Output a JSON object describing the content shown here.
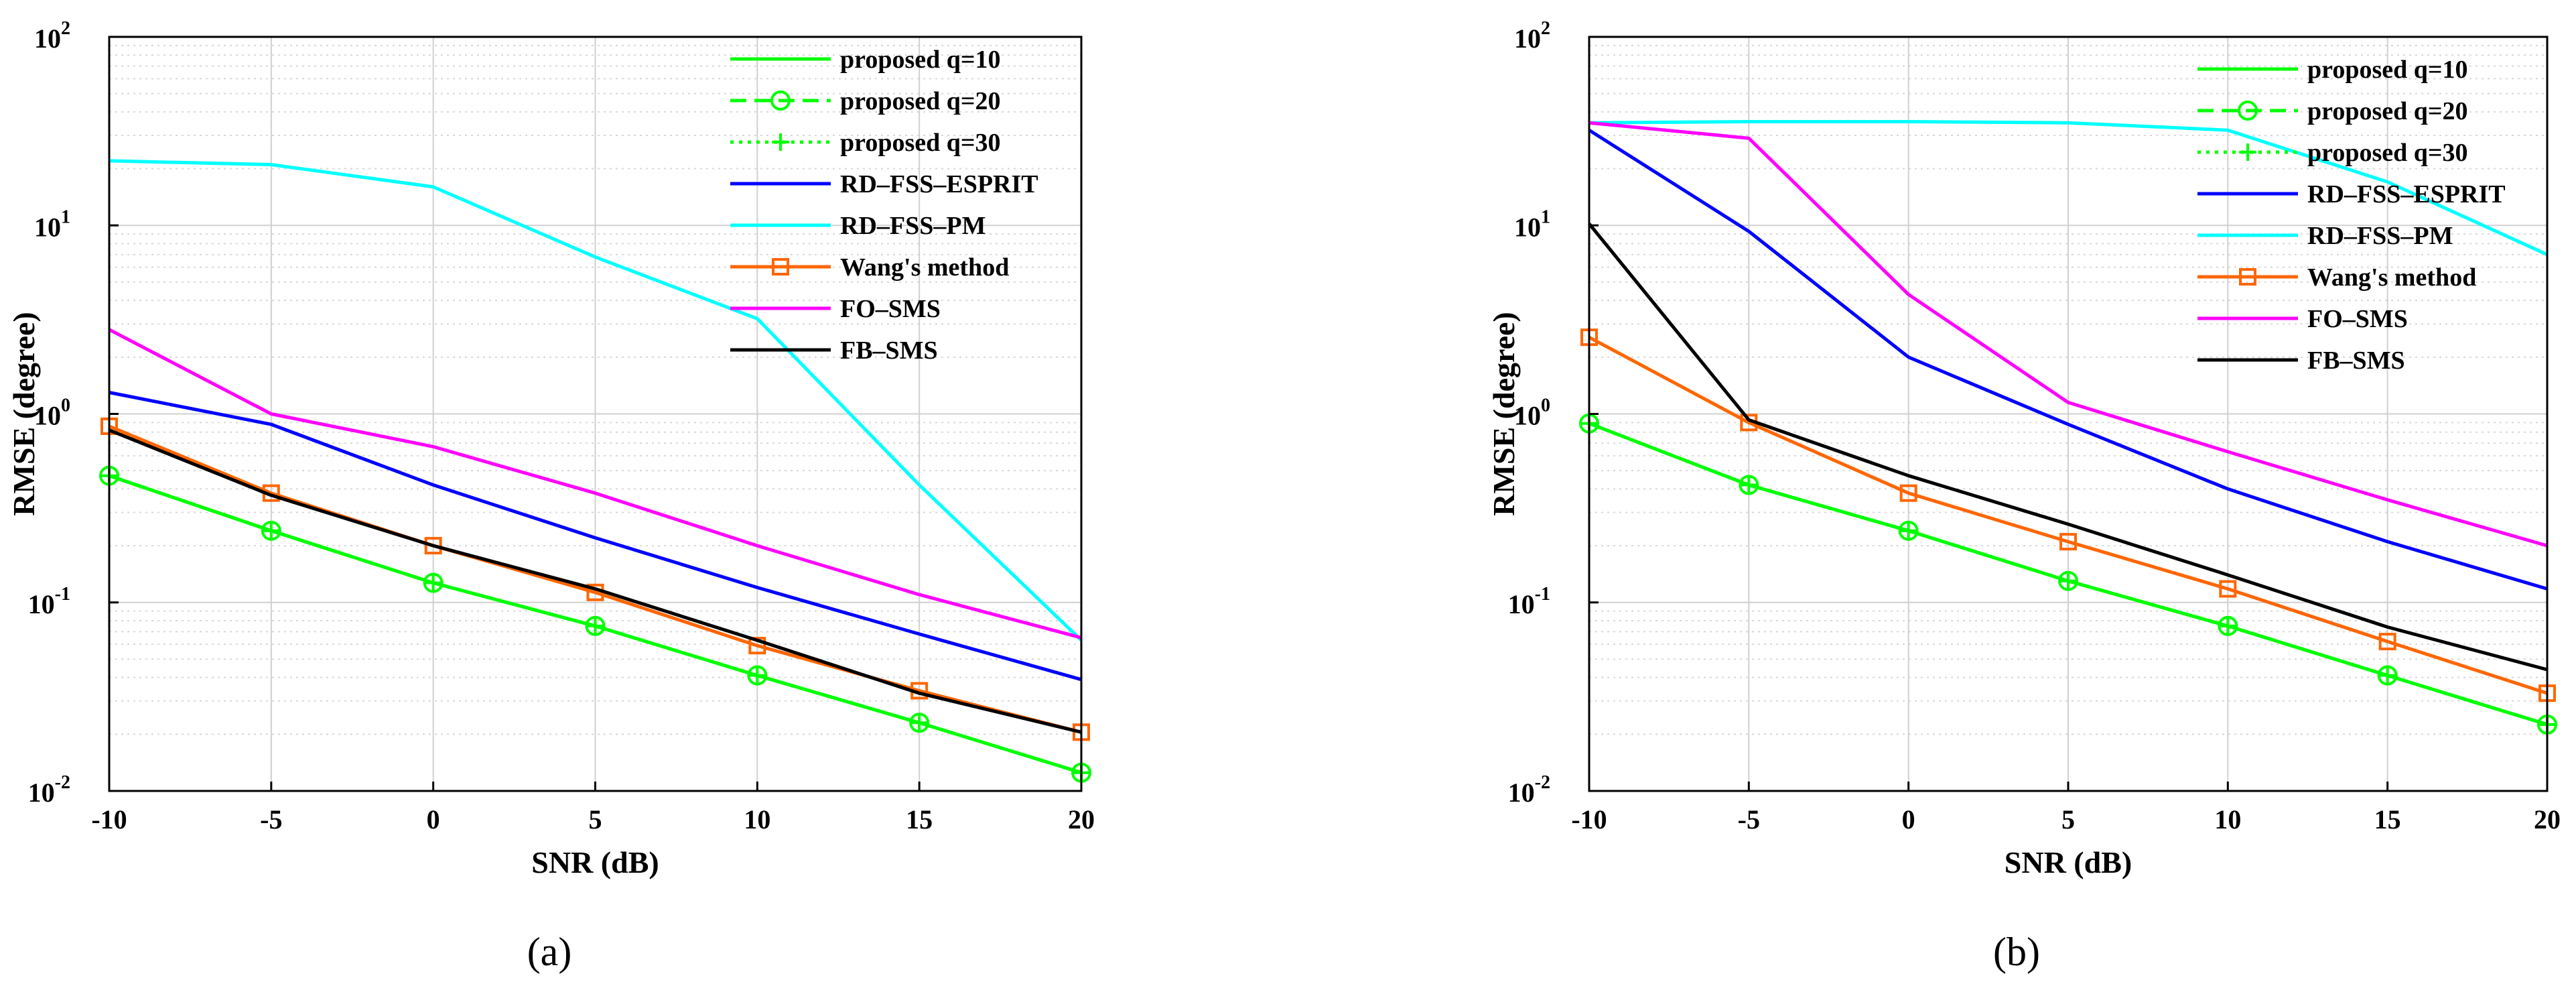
{
  "chart_data": [
    {
      "type": "line",
      "caption": "(a)",
      "xlabel": "SNR (dB)",
      "ylabel": "RMSE (degree)",
      "yscale": "log",
      "xlim": [
        -10,
        20
      ],
      "ylim": [
        0.01,
        100
      ],
      "x": [
        -10,
        -5,
        0,
        5,
        10,
        15,
        20
      ],
      "xticks": [
        "-10",
        "-5",
        "0",
        "5",
        "10",
        "15",
        "20"
      ],
      "yticks": [
        {
          "base": "10",
          "exp": "-2"
        },
        {
          "base": "10",
          "exp": "-1"
        },
        {
          "base": "10",
          "exp": "0"
        },
        {
          "base": "10",
          "exp": "1"
        },
        {
          "base": "10",
          "exp": "2"
        }
      ],
      "legend_position": "top-right",
      "grid": true,
      "series": [
        {
          "name": "proposed q=10",
          "color": "#00ff00",
          "style": "solid",
          "marker": "none",
          "values": [
            0.47,
            0.24,
            0.127,
            0.075,
            0.041,
            0.023,
            0.0125
          ]
        },
        {
          "name": "proposed q=20",
          "color": "#00ff00",
          "style": "dashed",
          "marker": "circle",
          "values": [
            0.47,
            0.24,
            0.127,
            0.075,
            0.041,
            0.023,
            0.0125
          ]
        },
        {
          "name": "proposed q=30",
          "color": "#00ff00",
          "style": "dotted",
          "marker": "plus",
          "values": [
            0.47,
            0.24,
            0.127,
            0.075,
            0.041,
            0.023,
            0.0125
          ]
        },
        {
          "name": "RD–FSS–ESPRIT",
          "color": "#0000ff",
          "style": "solid",
          "marker": "none",
          "values": [
            1.3,
            0.88,
            0.42,
            0.22,
            0.12,
            0.068,
            0.039
          ]
        },
        {
          "name": "RD–FSS–PM",
          "color": "#00ffff",
          "style": "solid",
          "marker": "none",
          "values": [
            22,
            21,
            16,
            6.8,
            3.2,
            0.42,
            0.063
          ]
        },
        {
          "name": "Wang's method",
          "color": "#ff6600",
          "style": "solid",
          "marker": "square",
          "values": [
            0.86,
            0.38,
            0.2,
            0.113,
            0.059,
            0.034,
            0.0205
          ]
        },
        {
          "name": "FO–SMS",
          "color": "#ff00ff",
          "style": "solid",
          "marker": "none",
          "values": [
            2.8,
            1.0,
            0.67,
            0.38,
            0.2,
            0.11,
            0.065
          ]
        },
        {
          "name": "FB–SMS",
          "color": "#000000",
          "style": "solid",
          "marker": "none",
          "values": [
            0.82,
            0.37,
            0.2,
            0.118,
            0.063,
            0.033,
            0.0205
          ]
        }
      ]
    },
    {
      "type": "line",
      "caption": "(b)",
      "xlabel": "SNR (dB)",
      "ylabel": "RMSE (degree)",
      "yscale": "log",
      "xlim": [
        -10,
        20
      ],
      "ylim": [
        0.01,
        100
      ],
      "x": [
        -10,
        -5,
        0,
        5,
        10,
        15,
        20
      ],
      "xticks": [
        "-10",
        "-5",
        "0",
        "5",
        "10",
        "15",
        "20"
      ],
      "yticks": [
        {
          "base": "10",
          "exp": "-2"
        },
        {
          "base": "10",
          "exp": "-1"
        },
        {
          "base": "10",
          "exp": "0"
        },
        {
          "base": "10",
          "exp": "1"
        },
        {
          "base": "10",
          "exp": "2"
        }
      ],
      "legend_position": "top-right",
      "grid": true,
      "series": [
        {
          "name": "proposed q=10",
          "color": "#00ff00",
          "style": "solid",
          "marker": "none",
          "values": [
            0.89,
            0.42,
            0.24,
            0.13,
            0.075,
            0.041,
            0.0225
          ]
        },
        {
          "name": "proposed q=20",
          "color": "#00ff00",
          "style": "dashed",
          "marker": "circle",
          "values": [
            0.89,
            0.42,
            0.24,
            0.13,
            0.075,
            0.041,
            0.0225
          ]
        },
        {
          "name": "proposed q=30",
          "color": "#00ff00",
          "style": "dotted",
          "marker": "plus",
          "values": [
            0.89,
            0.42,
            0.24,
            0.13,
            0.075,
            0.041,
            0.0225
          ]
        },
        {
          "name": "RD–FSS–ESPRIT",
          "color": "#0000ff",
          "style": "solid",
          "marker": "none",
          "values": [
            32,
            9.3,
            2.0,
            0.88,
            0.4,
            0.21,
            0.118
          ]
        },
        {
          "name": "RD–FSS–PM",
          "color": "#00ffff",
          "style": "solid",
          "marker": "none",
          "values": [
            35,
            35.5,
            35.5,
            35,
            32,
            17,
            7
          ]
        },
        {
          "name": "Wang's method",
          "color": "#ff6600",
          "style": "solid",
          "marker": "square",
          "values": [
            2.55,
            0.9,
            0.38,
            0.21,
            0.118,
            0.062,
            0.033
          ]
        },
        {
          "name": "FO–SMS",
          "color": "#ff00ff",
          "style": "solid",
          "marker": "none",
          "values": [
            35,
            29,
            4.3,
            1.15,
            0.63,
            0.35,
            0.2
          ]
        },
        {
          "name": "FB–SMS",
          "color": "#000000",
          "style": "solid",
          "marker": "none",
          "values": [
            10.2,
            0.93,
            0.47,
            0.26,
            0.14,
            0.074,
            0.044
          ]
        }
      ]
    }
  ]
}
